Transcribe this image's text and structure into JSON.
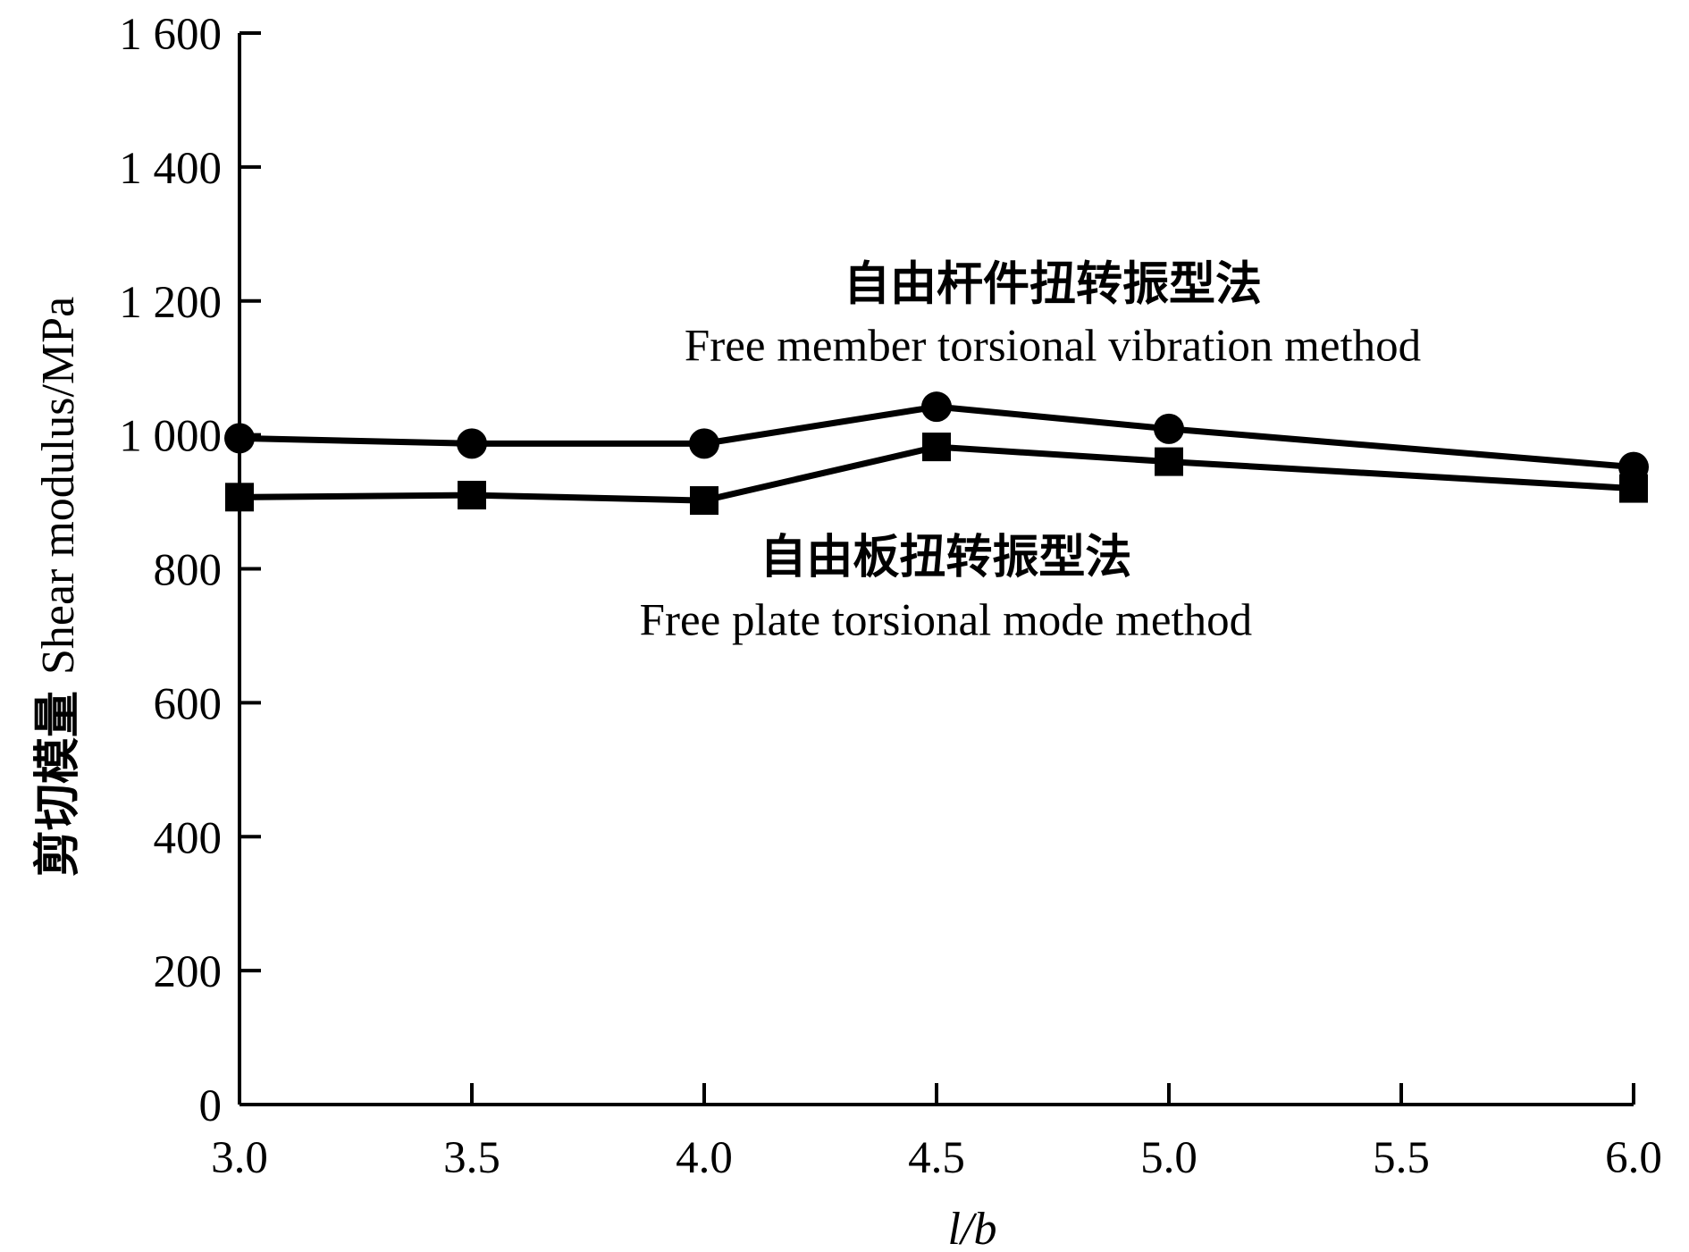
{
  "chart_data": {
    "type": "line",
    "x": [
      3.0,
      3.5,
      4.0,
      4.5,
      5.0,
      6.0
    ],
    "xlim": [
      3.0,
      6.0
    ],
    "ylim": [
      0,
      1600
    ],
    "x_ticks": [
      {
        "value": 3.0,
        "label": "3.0"
      },
      {
        "value": 3.5,
        "label": "3.5"
      },
      {
        "value": 4.0,
        "label": "4.0"
      },
      {
        "value": 4.5,
        "label": "4.5"
      },
      {
        "value": 5.0,
        "label": "5.0"
      },
      {
        "value": 5.5,
        "label": "5.5"
      },
      {
        "value": 6.0,
        "label": "6.0"
      }
    ],
    "y_ticks": [
      {
        "value": 0,
        "label": "0"
      },
      {
        "value": 200,
        "label": "200"
      },
      {
        "value": 400,
        "label": "400"
      },
      {
        "value": 600,
        "label": "600"
      },
      {
        "value": 800,
        "label": "800"
      },
      {
        "value": 1000,
        "label": "1 000"
      },
      {
        "value": 1200,
        "label": "1 200"
      },
      {
        "value": 1400,
        "label": "1 400"
      },
      {
        "value": 1600,
        "label": "1 600"
      }
    ],
    "xlabel": "l/b",
    "ylabel_cn": "剪切模量",
    "ylabel_en": "Shear modulus/MPa",
    "series": [
      {
        "marker": "circle",
        "values": [
          995,
          987,
          987,
          1042,
          1009,
          952
        ]
      },
      {
        "marker": "square",
        "values": [
          907,
          910,
          902,
          982,
          960,
          920
        ]
      }
    ],
    "annotations": [
      {
        "cn": "自由杆件扭转振型法",
        "en": "Free member torsional vibration method",
        "series": 0,
        "anchor_x": 4.75,
        "cn_y": 1226,
        "en_y": 1135
      },
      {
        "cn": "自由板扭转振型法",
        "en": "Free plate torsional mode method",
        "series": 1,
        "anchor_x": 4.52,
        "cn_y": 818,
        "en_y": 725
      }
    ],
    "grid": false,
    "legend": "none"
  }
}
